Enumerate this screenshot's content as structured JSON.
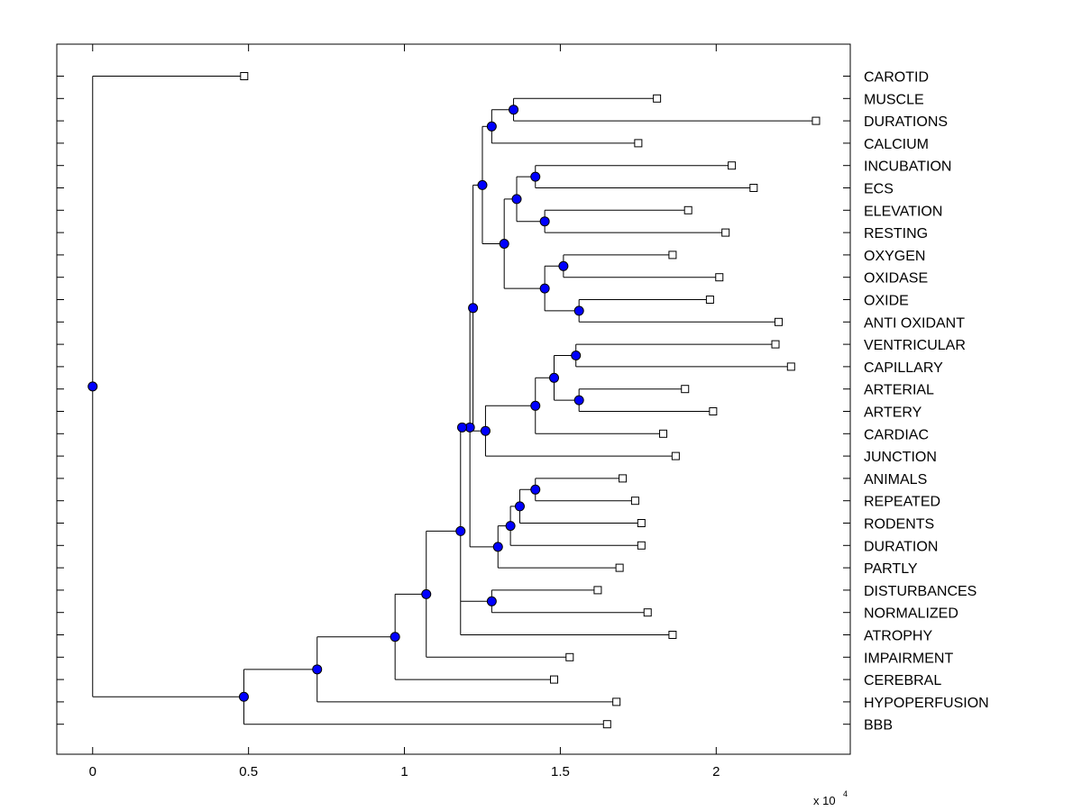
{
  "chart_data": {
    "type": "dendrogram",
    "orientation": "horizontal",
    "x_tick_labels": [
      "0",
      "0.5",
      "1",
      "1.5",
      "2"
    ],
    "x_tick_values": [
      0,
      5000,
      10000,
      15000,
      20000
    ],
    "x_exponent_label": "x 10",
    "x_exponent_power": "4",
    "xlim": [
      -1150,
      24300
    ],
    "colors": {
      "node": "#0000ff",
      "line": "#000000",
      "leaf_fill": "#ffffff"
    },
    "leaves": [
      {
        "label": "CAROTID",
        "x": 4860
      },
      {
        "label": "MUSCLE",
        "x": 18100
      },
      {
        "label": "DURATIONS",
        "x": 23200
      },
      {
        "label": "CALCIUM",
        "x": 17500
      },
      {
        "label": "INCUBATION",
        "x": 20500
      },
      {
        "label": "ECS",
        "x": 21200
      },
      {
        "label": "ELEVATION",
        "x": 19100
      },
      {
        "label": "RESTING",
        "x": 20300
      },
      {
        "label": "OXYGEN",
        "x": 18600
      },
      {
        "label": "OXIDASE",
        "x": 20100
      },
      {
        "label": "OXIDE",
        "x": 19800
      },
      {
        "label": "ANTI OXIDANT",
        "x": 22000
      },
      {
        "label": "VENTRICULAR",
        "x": 21900
      },
      {
        "label": "CAPILLARY",
        "x": 22400
      },
      {
        "label": "ARTERIAL",
        "x": 19000
      },
      {
        "label": "ARTERY",
        "x": 19900
      },
      {
        "label": "CARDIAC",
        "x": 18300
      },
      {
        "label": "JUNCTION",
        "x": 18700
      },
      {
        "label": "ANIMALS",
        "x": 17000
      },
      {
        "label": "REPEATED",
        "x": 17400
      },
      {
        "label": "RODENTS",
        "x": 17600
      },
      {
        "label": "DURATION",
        "x": 17600
      },
      {
        "label": "PARTLY",
        "x": 16900
      },
      {
        "label": "DISTURBANCES",
        "x": 16200
      },
      {
        "label": "NORMALIZED",
        "x": 17800
      },
      {
        "label": "ATROPHY",
        "x": 18600
      },
      {
        "label": "IMPAIRMENT",
        "x": 15300
      },
      {
        "label": "CEREBRAL",
        "x": 14800
      },
      {
        "label": "HYPOPERFUSION",
        "x": 16800
      },
      {
        "label": "BBB",
        "x": 16500
      }
    ],
    "nodes": {
      "n1": {
        "x": 13500,
        "children": [
          "L1",
          "L2"
        ]
      },
      "n2": {
        "x": 12800,
        "children": [
          "n1",
          "L3"
        ]
      },
      "n3": {
        "x": 14200,
        "children": [
          "L4",
          "L5"
        ]
      },
      "n4": {
        "x": 14500,
        "children": [
          "L6",
          "L7"
        ]
      },
      "n5": {
        "x": 13600,
        "children": [
          "n3",
          "n4"
        ]
      },
      "n6": {
        "x": 15100,
        "children": [
          "L8",
          "L9"
        ]
      },
      "n7": {
        "x": 15600,
        "children": [
          "L10",
          "L11"
        ]
      },
      "n8": {
        "x": 14500,
        "children": [
          "n6",
          "n7"
        ]
      },
      "n9": {
        "x": 13200,
        "children": [
          "n5",
          "n8"
        ]
      },
      "n10": {
        "x": 12500,
        "children": [
          "n2",
          "n9"
        ]
      },
      "n11": {
        "x": 15500,
        "children": [
          "L12",
          "L13"
        ]
      },
      "n12": {
        "x": 15600,
        "children": [
          "L14",
          "L15"
        ]
      },
      "n13": {
        "x": 14800,
        "children": [
          "n11",
          "n12"
        ]
      },
      "n14": {
        "x": 14200,
        "children": [
          "n13",
          "L16"
        ]
      },
      "n15": {
        "x": 12600,
        "children": [
          "n14",
          "L17"
        ]
      },
      "n16": {
        "x": 12200,
        "children": [
          "n10",
          "n15"
        ]
      },
      "n17": {
        "x": 14200,
        "children": [
          "L18",
          "L19"
        ]
      },
      "n18": {
        "x": 13700,
        "children": [
          "n17",
          "L20"
        ]
      },
      "n19": {
        "x": 13400,
        "children": [
          "n18",
          "L21"
        ]
      },
      "n20": {
        "x": 13000,
        "children": [
          "n19",
          "L22"
        ]
      },
      "n21": {
        "x": 12100,
        "children": [
          "n16",
          "n20"
        ]
      },
      "n22": {
        "x": 11850,
        "children": [
          "n21",
          "L0_unused"
        ]
      },
      "n23": {
        "x": 12800,
        "children": [
          "L23",
          "L24"
        ]
      },
      "n24": {
        "x": 11800,
        "children": [
          "n22",
          "n23",
          "L25"
        ]
      },
      "n25": {
        "x": 10700,
        "children": [
          "n24",
          "L26"
        ]
      },
      "n26": {
        "x": 9700,
        "children": [
          "n25",
          "L27"
        ]
      },
      "n27": {
        "x": 7200,
        "children": [
          "n26",
          "L28"
        ]
      },
      "n28": {
        "x": 4850,
        "children": [
          "n27",
          "L29"
        ]
      },
      "n29": {
        "x": 0,
        "children": [
          "L0",
          "n28"
        ]
      }
    }
  }
}
